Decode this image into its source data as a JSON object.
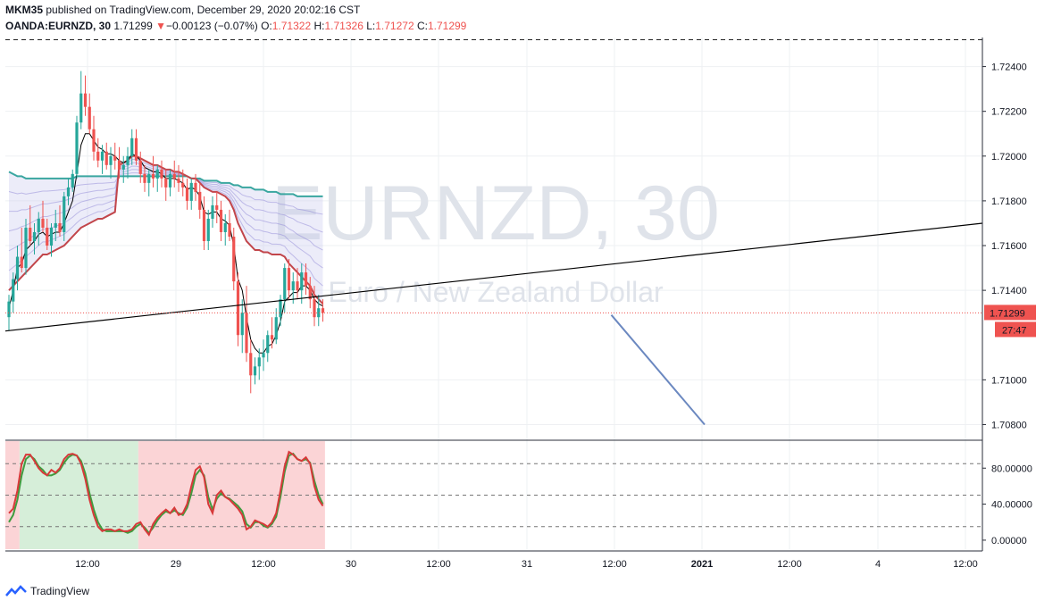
{
  "header": {
    "author": "MKM35",
    "published_text": " published on TradingView.com, December 29, 2020 20:02:16 CST",
    "symbol": "OANDA:EURNZD, 30",
    "last": "1.71299",
    "arrow": "▼",
    "change": "−0.00123 (−0.07%)",
    "o_label": "O:",
    "o_value": "1.71322",
    "h_label": "H:",
    "h_value": "1.71326",
    "l_label": "L:",
    "l_value": "1.71272",
    "c_label": "C:",
    "c_value": "1.71299"
  },
  "watermark": {
    "symbol": "EURNZD, 30",
    "name": "Euro / New Zealand Dollar"
  },
  "price_badge": "1.71299",
  "countdown_badge": "27:47",
  "footer": {
    "brand": "TradingView"
  },
  "colors": {
    "up": "#26a69a",
    "down": "#ef5350",
    "ema_fast": "#000000",
    "ema_slow": "#c2464b",
    "trendline": "#000000",
    "projection": "#6b88c0",
    "stoch_k": "#d8393a",
    "stoch_d": "#3f9c3f"
  },
  "chart_data": [
    {
      "type": "candlestick",
      "symbol": "OANDA:EURNZD",
      "interval": "30",
      "y_ticks": [
        "1.72400",
        "1.72200",
        "1.72000",
        "1.71800",
        "1.71600",
        "1.71400",
        "1.71000",
        "1.70800"
      ],
      "ylim": [
        1.7073,
        1.7253
      ],
      "x_ticks": [
        "12:00",
        "29",
        "12:00",
        "30",
        "12:00",
        "31",
        "12:00",
        "2021",
        "12:00",
        "4",
        "12:00"
      ],
      "ohlc": [
        [
          1.7128,
          1.7138,
          1.7122,
          1.7135
        ],
        [
          1.7135,
          1.7148,
          1.713,
          1.7145
        ],
        [
          1.7145,
          1.716,
          1.714,
          1.7155
        ],
        [
          1.7155,
          1.7168,
          1.7148,
          1.715
        ],
        [
          1.715,
          1.7172,
          1.7147,
          1.7168
        ],
        [
          1.7168,
          1.7178,
          1.716,
          1.7162
        ],
        [
          1.7162,
          1.717,
          1.7156,
          1.7166
        ],
        [
          1.7166,
          1.7175,
          1.716,
          1.7172
        ],
        [
          1.7172,
          1.718,
          1.7166,
          1.7168
        ],
        [
          1.7168,
          1.7172,
          1.7158,
          1.716
        ],
        [
          1.716,
          1.717,
          1.7155,
          1.7168
        ],
        [
          1.7168,
          1.7176,
          1.7162,
          1.717
        ],
        [
          1.717,
          1.7178,
          1.7164,
          1.7166
        ],
        [
          1.7166,
          1.7184,
          1.7162,
          1.7182
        ],
        [
          1.7182,
          1.719,
          1.7178,
          1.7186
        ],
        [
          1.7186,
          1.7194,
          1.7184,
          1.7192
        ],
        [
          1.7192,
          1.7218,
          1.719,
          1.7215
        ],
        [
          1.7215,
          1.7238,
          1.7212,
          1.7228
        ],
        [
          1.7228,
          1.7236,
          1.7218,
          1.7222
        ],
        [
          1.7222,
          1.7228,
          1.721,
          1.7212
        ],
        [
          1.7212,
          1.7218,
          1.7198,
          1.7202
        ],
        [
          1.7202,
          1.7208,
          1.7195,
          1.7198
        ],
        [
          1.7198,
          1.7205,
          1.7192,
          1.7202
        ],
        [
          1.7202,
          1.7206,
          1.7194,
          1.7196
        ],
        [
          1.7196,
          1.7204,
          1.719,
          1.72
        ],
        [
          1.72,
          1.7206,
          1.7194,
          1.7198
        ],
        [
          1.7198,
          1.7204,
          1.719,
          1.7194
        ],
        [
          1.7194,
          1.72,
          1.7188,
          1.7196
        ],
        [
          1.7196,
          1.7204,
          1.719,
          1.72
        ],
        [
          1.72,
          1.7212,
          1.7196,
          1.7208
        ],
        [
          1.7208,
          1.7212,
          1.7196,
          1.7198
        ],
        [
          1.7198,
          1.7202,
          1.7188,
          1.7192
        ],
        [
          1.7192,
          1.7196,
          1.7184,
          1.7188
        ],
        [
          1.7188,
          1.7194,
          1.7182,
          1.7192
        ],
        [
          1.7192,
          1.72,
          1.7186,
          1.719
        ],
        [
          1.719,
          1.7196,
          1.7184,
          1.7194
        ],
        [
          1.7194,
          1.7198,
          1.7186,
          1.719
        ],
        [
          1.719,
          1.7194,
          1.718,
          1.7186
        ],
        [
          1.7186,
          1.7194,
          1.7182,
          1.7192
        ],
        [
          1.7192,
          1.7198,
          1.7186,
          1.719
        ],
        [
          1.719,
          1.7196,
          1.7184,
          1.7188
        ],
        [
          1.7188,
          1.7194,
          1.7182,
          1.7186
        ],
        [
          1.7186,
          1.719,
          1.7176,
          1.718
        ],
        [
          1.718,
          1.719,
          1.7176,
          1.7188
        ],
        [
          1.7188,
          1.7192,
          1.718,
          1.7184
        ],
        [
          1.7184,
          1.7188,
          1.7172,
          1.7176
        ],
        [
          1.7176,
          1.7182,
          1.7158,
          1.7162
        ],
        [
          1.7162,
          1.7176,
          1.7158,
          1.7172
        ],
        [
          1.7172,
          1.7182,
          1.7168,
          1.7178
        ],
        [
          1.7178,
          1.7184,
          1.717,
          1.7176
        ],
        [
          1.7176,
          1.718,
          1.7162,
          1.7166
        ],
        [
          1.7166,
          1.7174,
          1.716,
          1.717
        ],
        [
          1.717,
          1.7176,
          1.7162,
          1.7164
        ],
        [
          1.7164,
          1.7168,
          1.714,
          1.7144
        ],
        [
          1.7144,
          1.7148,
          1.7115,
          1.712
        ],
        [
          1.712,
          1.7136,
          1.7112,
          1.713
        ],
        [
          1.713,
          1.7142,
          1.7108,
          1.7112
        ],
        [
          1.7112,
          1.7118,
          1.7094,
          1.7102
        ],
        [
          1.7102,
          1.711,
          1.7098,
          1.7106
        ],
        [
          1.7106,
          1.7114,
          1.71,
          1.711
        ],
        [
          1.711,
          1.7118,
          1.7104,
          1.7112
        ],
        [
          1.7112,
          1.7122,
          1.7108,
          1.712
        ],
        [
          1.712,
          1.7128,
          1.7114,
          1.7118
        ],
        [
          1.7118,
          1.7132,
          1.7116,
          1.7128
        ],
        [
          1.7128,
          1.7138,
          1.7124,
          1.7136
        ],
        [
          1.7136,
          1.7152,
          1.713,
          1.715
        ],
        [
          1.715,
          1.7154,
          1.7136,
          1.714
        ],
        [
          1.714,
          1.7148,
          1.7134,
          1.7144
        ],
        [
          1.7144,
          1.715,
          1.7136,
          1.714
        ],
        [
          1.714,
          1.7152,
          1.7134,
          1.7148
        ],
        [
          1.7148,
          1.7152,
          1.7138,
          1.7142
        ],
        [
          1.7142,
          1.7146,
          1.7132,
          1.7136
        ],
        [
          1.7136,
          1.7142,
          1.7124,
          1.7128
        ],
        [
          1.7128,
          1.7138,
          1.7124,
          1.7132
        ],
        [
          1.7132,
          1.7136,
          1.7126,
          1.713
        ]
      ],
      "ema_fast": [
        1.7132,
        1.714,
        1.715,
        1.7152,
        1.7158,
        1.716,
        1.7162,
        1.7165,
        1.7166,
        1.7164,
        1.7165,
        1.7166,
        1.7166,
        1.717,
        1.7175,
        1.718,
        1.7192,
        1.7205,
        1.721,
        1.721,
        1.7207,
        1.7204,
        1.7203,
        1.7201,
        1.7201,
        1.72,
        1.7198,
        1.7197,
        1.7198,
        1.7201,
        1.72,
        1.7198,
        1.7195,
        1.7194,
        1.7193,
        1.7193,
        1.7192,
        1.719,
        1.719,
        1.719,
        1.7189,
        1.7188,
        1.7185,
        1.7186,
        1.7185,
        1.7182,
        1.7175,
        1.7174,
        1.7175,
        1.7175,
        1.7172,
        1.7171,
        1.7169,
        1.716,
        1.7145,
        1.714,
        1.7128,
        1.7118,
        1.7114,
        1.7112,
        1.7112,
        1.7115,
        1.7116,
        1.712,
        1.7126,
        1.7135,
        1.7137,
        1.7139,
        1.7139,
        1.7142,
        1.7142,
        1.714,
        1.7136,
        1.7134,
        1.7133
      ],
      "ema_slow": [
        1.714,
        1.7142,
        1.7144,
        1.7146,
        1.7148,
        1.715,
        1.7152,
        1.7154,
        1.7156,
        1.7156,
        1.7157,
        1.7158,
        1.7159,
        1.716,
        1.7162,
        1.7164,
        1.7166,
        1.7168,
        1.7169,
        1.717,
        1.7171,
        1.7172,
        1.7172,
        1.7173,
        1.7174,
        1.7175,
        1.7196,
        1.7197,
        1.7198,
        1.72,
        1.72,
        1.7199,
        1.7198,
        1.7197,
        1.7196,
        1.7196,
        1.7195,
        1.7194,
        1.7194,
        1.7193,
        1.7193,
        1.7192,
        1.7191,
        1.719,
        1.719,
        1.7188,
        1.7186,
        1.7185,
        1.7184,
        1.7184,
        1.7183,
        1.7182,
        1.718,
        1.7176,
        1.717,
        1.7166,
        1.7162,
        1.716,
        1.7158,
        1.7158,
        1.7157,
        1.7157,
        1.7156,
        1.7156,
        1.7156,
        1.7155,
        1.7152,
        1.715,
        1.7148,
        1.7146,
        1.7144,
        1.7142,
        1.7138,
        1.7136,
        1.7134
      ],
      "ema_200": [
        1.7193,
        1.7192,
        1.7191,
        1.7191,
        1.719,
        1.719,
        1.719,
        1.719,
        1.719,
        1.719,
        1.719,
        1.719,
        1.719,
        1.719,
        1.719,
        1.719,
        1.7191,
        1.7191,
        1.7191,
        1.7191,
        1.7191,
        1.7191,
        1.7191,
        1.7191,
        1.7191,
        1.7191,
        1.7191,
        1.7191,
        1.7191,
        1.7191,
        1.7191,
        1.7191,
        1.7191,
        1.7191,
        1.7191,
        1.7191,
        1.7191,
        1.7191,
        1.7191,
        1.7191,
        1.7191,
        1.7191,
        1.7191,
        1.719,
        1.719,
        1.719,
        1.7189,
        1.7189,
        1.7189,
        1.7189,
        1.7188,
        1.7188,
        1.7188,
        1.7187,
        1.7187,
        1.7186,
        1.7186,
        1.7186,
        1.7185,
        1.7185,
        1.7185,
        1.7184,
        1.7184,
        1.7184,
        1.7183,
        1.7183,
        1.7183,
        1.7183,
        1.7182,
        1.7182,
        1.7182,
        1.7182,
        1.7182,
        1.7182,
        1.7182
      ],
      "trendline": {
        "x": [
          0,
          220
        ],
        "y": [
          1.7122,
          1.7168
        ]
      },
      "projection_line": {
        "x": [
          142,
          164
        ],
        "y": [
          1.7129,
          1.708
        ]
      },
      "resistance_level": 1.7252,
      "last_price": 1.71299
    },
    {
      "type": "line",
      "name": "stochastic",
      "y_ticks": [
        "80.00000",
        "40.00000",
        "0.00000"
      ],
      "ylim": [
        -10,
        110
      ],
      "levels": [
        85,
        50,
        15
      ],
      "k": [
        30,
        35,
        55,
        85,
        95,
        95,
        88,
        80,
        75,
        72,
        78,
        75,
        80,
        90,
        95,
        96,
        94,
        85,
        68,
        45,
        28,
        15,
        10,
        12,
        12,
        10,
        12,
        10,
        10,
        12,
        18,
        20,
        12,
        6,
        18,
        25,
        30,
        34,
        30,
        36,
        28,
        30,
        40,
        60,
        78,
        82,
        70,
        40,
        30,
        50,
        55,
        48,
        45,
        40,
        35,
        28,
        12,
        15,
        22,
        20,
        18,
        15,
        20,
        30,
        55,
        82,
        98,
        95,
        90,
        88,
        92,
        85,
        60,
        45,
        38
      ],
      "d": [
        20,
        28,
        45,
        72,
        90,
        94,
        90,
        82,
        78,
        72,
        72,
        74,
        78,
        86,
        92,
        95,
        94,
        88,
        74,
        52,
        34,
        20,
        12,
        10,
        10,
        10,
        10,
        10,
        8,
        10,
        15,
        18,
        14,
        8,
        14,
        22,
        28,
        32,
        30,
        33,
        30,
        28,
        36,
        52,
        72,
        78,
        72,
        48,
        34,
        46,
        52,
        48,
        46,
        42,
        38,
        32,
        18,
        14,
        20,
        20,
        16,
        14,
        18,
        26,
        48,
        76,
        94,
        96,
        90,
        88,
        90,
        86,
        66,
        50,
        40
      ],
      "zones": [
        {
          "from": 0,
          "to": 3,
          "color": "red"
        },
        {
          "from": 3,
          "to": 31,
          "color": "green"
        },
        {
          "from": 31,
          "to": 75,
          "color": "red"
        }
      ]
    }
  ]
}
